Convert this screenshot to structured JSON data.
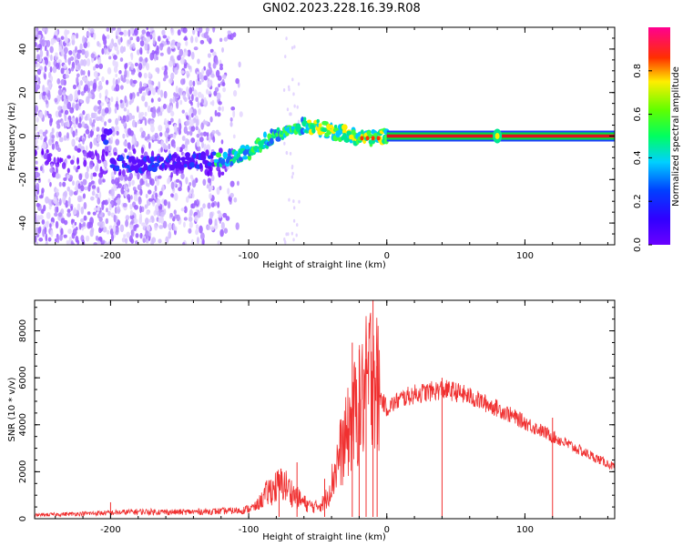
{
  "title": "GN02.2023.228.16.39.R08",
  "colors": {
    "snr_line": "#f03030",
    "trace_core": "#e01020",
    "trace_edge": "#00e040",
    "axis": "#000000"
  },
  "colorbar": {
    "label": "Normalized spectral amplitude",
    "ticks": [
      "0.0",
      "0.2",
      "0.4",
      "0.6",
      "0.8"
    ],
    "tick_values": [
      0.0,
      0.2,
      0.4,
      0.6,
      0.8
    ],
    "range": [
      0,
      1
    ],
    "colormap": "rainbow (purple-blue-cyan-green-yellow-red-magenta)"
  },
  "chart_data": [
    {
      "type": "heatmap",
      "xlabel": "Height of straight line (km)",
      "ylabel": "Frequency (Hz)",
      "xlim": [
        -255,
        165
      ],
      "ylim": [
        -50,
        50
      ],
      "xticks": [
        -200,
        -100,
        0,
        100
      ],
      "xtick_labels": [
        "-200",
        "-100",
        "0",
        "100"
      ],
      "yticks": [
        -40,
        -20,
        0,
        20,
        40
      ],
      "ytick_labels": [
        "-40",
        "-20",
        "0",
        "20",
        "40"
      ],
      "trace": [
        {
          "x": -200,
          "y": -12
        },
        {
          "x": -180,
          "y": -13
        },
        {
          "x": -160,
          "y": -12
        },
        {
          "x": -130,
          "y": -11
        },
        {
          "x": -115,
          "y": -10
        },
        {
          "x": -100,
          "y": -8
        },
        {
          "x": -90,
          "y": -3
        },
        {
          "x": -80,
          "y": 1
        },
        {
          "x": -70,
          "y": 3
        },
        {
          "x": -60,
          "y": 5
        },
        {
          "x": -50,
          "y": 4
        },
        {
          "x": -40,
          "y": 2
        },
        {
          "x": -30,
          "y": 1
        },
        {
          "x": -20,
          "y": -1
        },
        {
          "x": -10,
          "y": -1
        },
        {
          "x": 0,
          "y": 0
        },
        {
          "x": 80,
          "y": 0
        },
        {
          "x": 165,
          "y": 0
        }
      ],
      "grid": false
    },
    {
      "type": "line",
      "xlabel": "Height of straight line (km)",
      "ylabel": "SNR (10 * v/v)",
      "xlim": [
        -255,
        165
      ],
      "ylim": [
        0,
        9300
      ],
      "xticks": [
        -200,
        -100,
        0,
        100
      ],
      "xtick_labels": [
        "-200",
        "-100",
        "0",
        "100"
      ],
      "yticks": [
        0,
        2000,
        4000,
        6000,
        8000
      ],
      "ytick_labels": [
        "0",
        "2000",
        "4000",
        "6000",
        "8000"
      ],
      "series": [
        {
          "x": [
            -255,
            -230,
            -200,
            -180,
            -150,
            -120,
            -105,
            -95,
            -85,
            -75,
            -65,
            -58,
            -52,
            -45,
            -40,
            -35,
            -30,
            -25,
            -22,
            -18,
            -15,
            -12,
            -10,
            -8,
            -5,
            -2,
            0,
            5,
            10,
            20,
            30,
            40,
            50,
            60,
            80,
            100,
            120,
            140,
            165
          ],
          "y": [
            150,
            200,
            250,
            300,
            280,
            320,
            350,
            500,
            1200,
            1500,
            900,
            600,
            500,
            700,
            1500,
            2600,
            3300,
            4200,
            4600,
            5000,
            5600,
            6200,
            7000,
            6000,
            5200,
            4900,
            4700,
            4900,
            5100,
            5300,
            5400,
            5500,
            5400,
            5200,
            4700,
            4100,
            3500,
            2900,
            2200
          ],
          "spikes": [
            {
              "x": -200,
              "y": 700
            },
            {
              "x": -78,
              "y": 1900
            },
            {
              "x": -65,
              "y": 2400
            },
            {
              "x": -45,
              "y": 1700
            },
            {
              "x": -25,
              "y": 7500
            },
            {
              "x": -20,
              "y": 7200
            },
            {
              "x": -15,
              "y": 6800
            },
            {
              "x": -10,
              "y": 9300
            },
            {
              "x": -7,
              "y": 6500
            },
            {
              "x": 40,
              "y": 6000
            },
            {
              "x": 120,
              "y": 4300
            }
          ]
        }
      ],
      "grid": false
    }
  ]
}
